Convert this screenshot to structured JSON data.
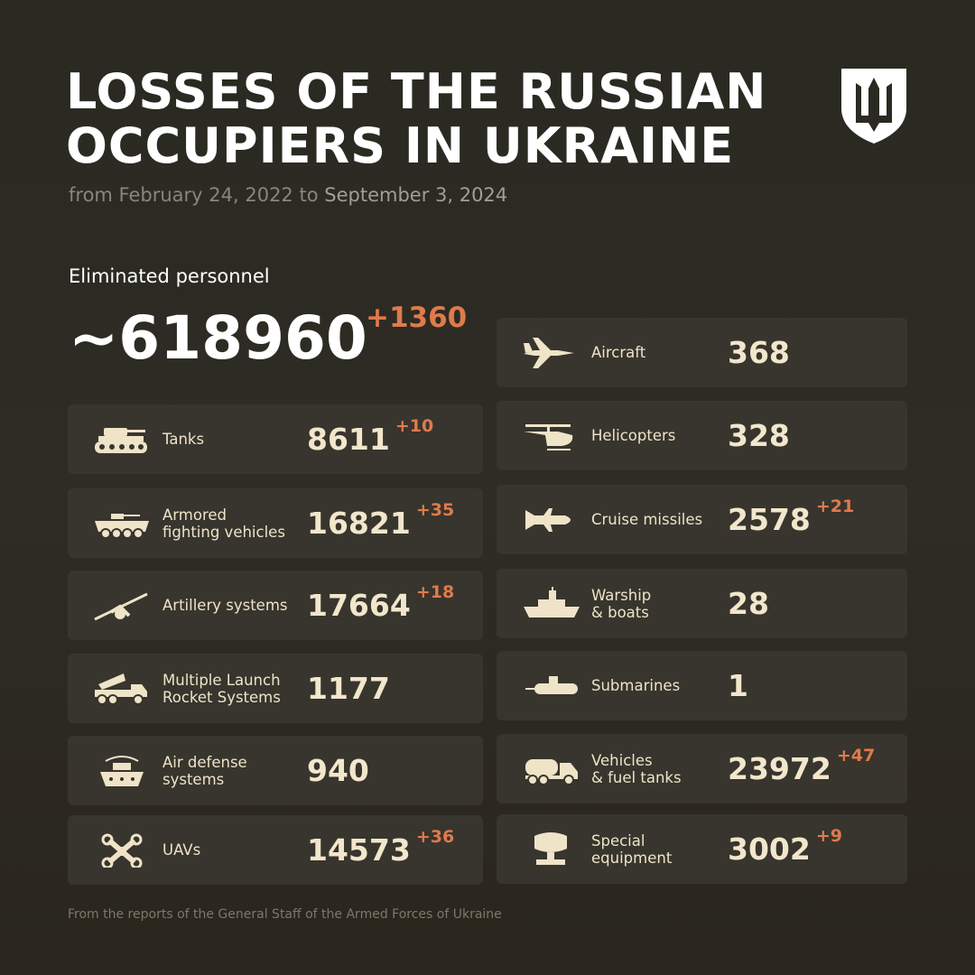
{
  "header": {
    "title_line1": "LOSSES OF THE RUSSIAN",
    "title_line2": "OCCUPIERS IN UKRAINE",
    "subtitle_from": "from February 24, 2022 to",
    "subtitle_to": "September 3, 2024",
    "logo": "trident-shield-icon"
  },
  "personnel": {
    "label": "Eliminated personnel",
    "value": "~618960",
    "delta": "+1360"
  },
  "left": [
    {
      "label": "Tanks",
      "value": "8611",
      "delta": "+10",
      "icon": "tank-icon"
    },
    {
      "label": "Armored\nfighting vehicles",
      "value": "16821",
      "delta": "+35",
      "icon": "armored-vehicle-icon"
    },
    {
      "label": "Artillery systems",
      "value": "17664",
      "delta": "+18",
      "icon": "artillery-icon"
    },
    {
      "label": "Multiple Launch\nRocket Systems",
      "value": "1177",
      "delta": "",
      "icon": "rocket-launcher-icon"
    },
    {
      "label": "Air defense\nsystems",
      "value": "940",
      "delta": "",
      "icon": "air-defense-icon"
    },
    {
      "label": "UAVs",
      "value": "14573",
      "delta": "+36",
      "icon": "drone-icon"
    }
  ],
  "right": [
    {
      "label": "Aircraft",
      "value": "368",
      "delta": "",
      "icon": "aircraft-icon"
    },
    {
      "label": "Helicopters",
      "value": "328",
      "delta": "",
      "icon": "helicopter-icon"
    },
    {
      "label": "Cruise missiles",
      "value": "2578",
      "delta": "+21",
      "icon": "missile-icon"
    },
    {
      "label": "Warship\n& boats",
      "value": "28",
      "delta": "",
      "icon": "warship-icon"
    },
    {
      "label": "Submarines",
      "value": "1",
      "delta": "",
      "icon": "submarine-icon"
    },
    {
      "label": "Vehicles\n& fuel tanks",
      "value": "23972",
      "delta": "+47",
      "icon": "truck-icon"
    },
    {
      "label": "Special\nequipment",
      "value": "3002",
      "delta": "+9",
      "icon": "special-equipment-icon"
    }
  ],
  "footer": "From the reports of the General Staff of the Armed Forces of Ukraine",
  "colors": {
    "background": "#2b2a22",
    "card": "#37352d",
    "text": "#f2e6cc",
    "accent": "#e07a4c"
  }
}
